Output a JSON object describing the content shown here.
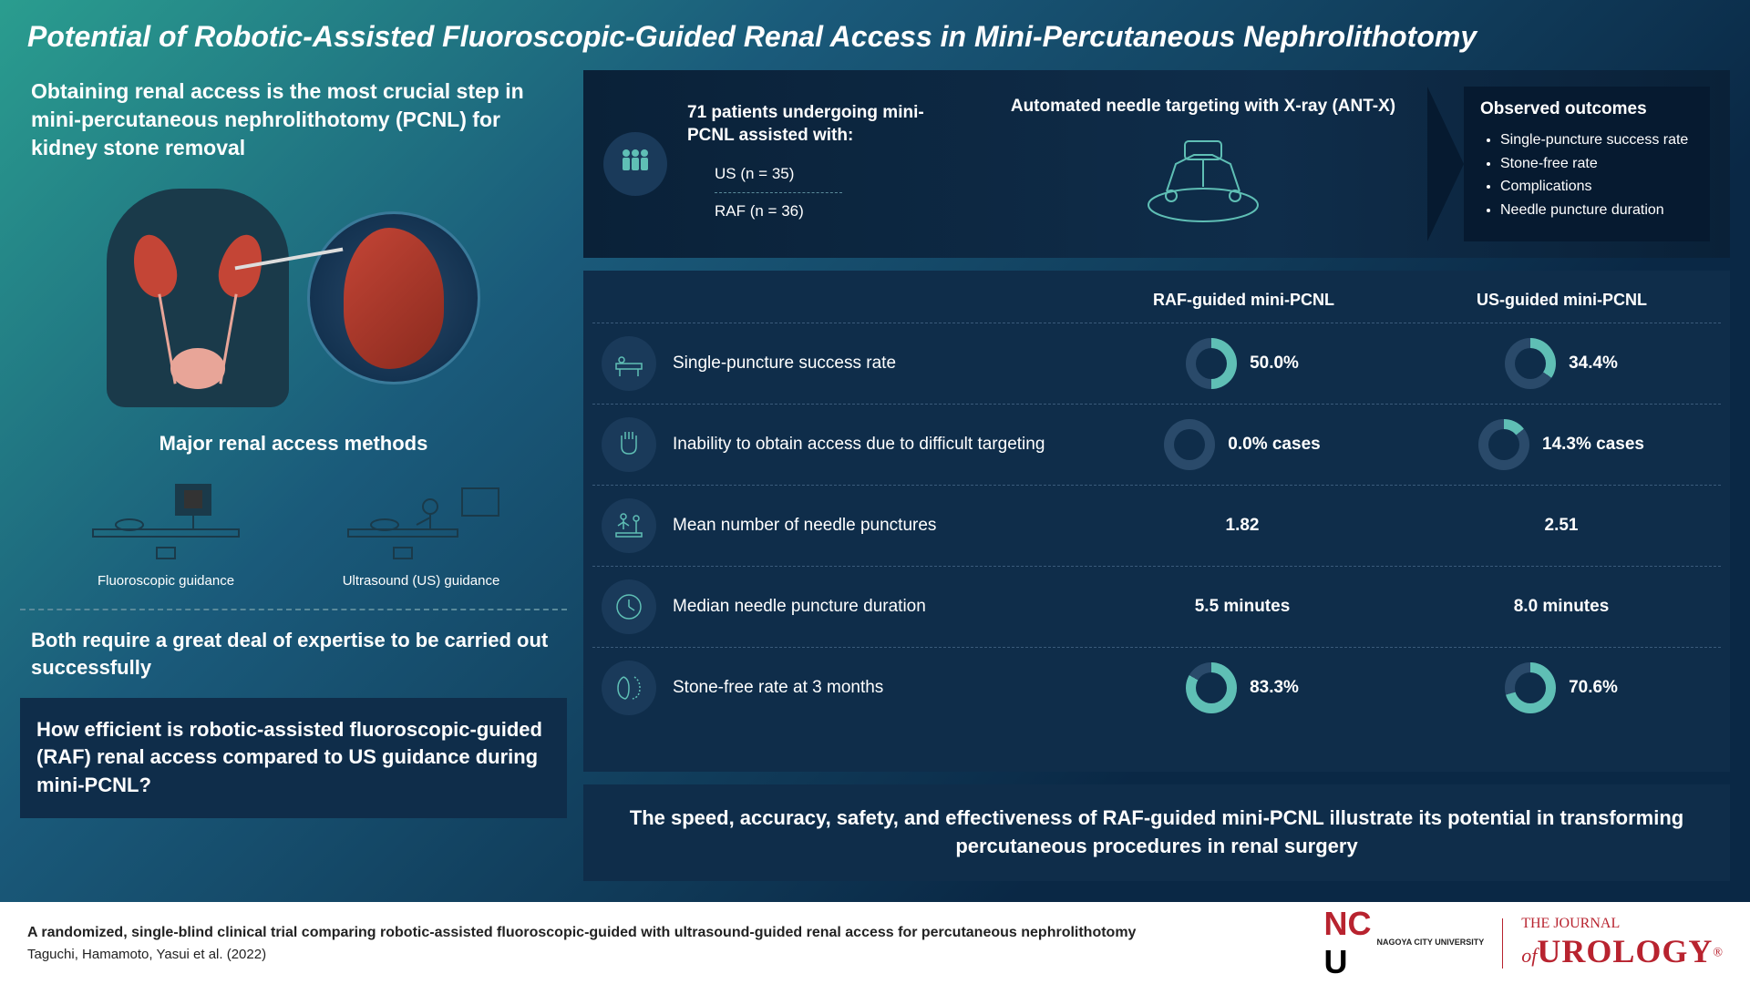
{
  "header": "Potential of Robotic-Assisted Fluoroscopic-Guided Renal Access in Mini-Percutaneous Nephrolithotomy",
  "intro": "Obtaining renal access is the most crucial step in mini-percutaneous nephrolithotomy (PCNL) for kidney stone removal",
  "methods_title": "Major renal access methods",
  "method1": "Fluoroscopic guidance",
  "method2": "Ultrasound (US) guidance",
  "expertise": "Both require a great deal of expertise to be carried out successfully",
  "question": "How efficient is robotic-assisted fluoroscopic-guided (RAF) renal access compared to US guidance during mini-PCNL?",
  "study": {
    "patients_title": "71 patients undergoing mini-PCNL assisted with:",
    "group1": "US (n = 35)",
    "group2": "RAF (n = 36)",
    "antx_title": "Automated needle targeting with X-ray (ANT-X)",
    "outcomes_title": "Observed outcomes",
    "outcomes": [
      "Single-puncture success rate",
      "Stone-free rate",
      "Complications",
      "Needle puncture duration"
    ]
  },
  "table": {
    "col1": "RAF-guided mini-PCNL",
    "col2": "US-guided mini-PCNL",
    "rows": [
      {
        "label": "Single-puncture success rate",
        "raf": "50.0%",
        "us": "34.4%",
        "raf_pct": 50,
        "us_pct": 34.4,
        "donut": true
      },
      {
        "label": "Inability to obtain access due to difficult targeting",
        "raf": "0.0% cases",
        "us": "14.3% cases",
        "raf_pct": 0,
        "us_pct": 14.3,
        "donut": true
      },
      {
        "label": "Mean number of needle punctures",
        "raf": "1.82",
        "us": "2.51",
        "donut": false
      },
      {
        "label": "Median needle puncture duration",
        "raf": "5.5 minutes",
        "us": "8.0 minutes",
        "donut": false
      },
      {
        "label": "Stone-free rate at 3 months",
        "raf": "83.3%",
        "us": "70.6%",
        "raf_pct": 83.3,
        "us_pct": 70.6,
        "donut": true
      }
    ]
  },
  "conclusion": "The speed, accuracy, safety, and effectiveness of RAF-guided mini-PCNL illustrate its potential in transforming percutaneous procedures in renal surgery",
  "footer": {
    "title": "A randomized, single-blind clinical trial comparing robotic-assisted fluoroscopic-guided with ultrasound-guided renal access for percutaneous nephrolithotomy",
    "authors": "Taguchi, Hamamoto, Yasui et al. (2022)",
    "ncu": "NAGOYA CITY UNIVERSITY",
    "journal_the": "THE JOURNAL",
    "journal_of": "of",
    "journal_name": "UROLOGY"
  },
  "colors": {
    "donut_fill": "#5fbfb5",
    "donut_track": "#2a4a6a",
    "icon_stroke": "#5fbfb5"
  }
}
